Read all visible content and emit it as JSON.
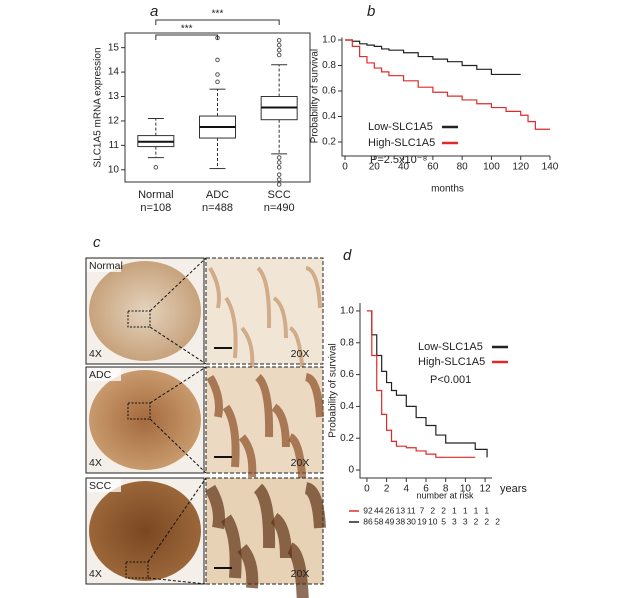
{
  "chart_data": [
    {
      "type": "box",
      "panel_label": "a",
      "ylabel": "SLC1A5 mRNA expression",
      "categories": [
        "Normal",
        "ADC",
        "SCC"
      ],
      "n_labels": [
        "n=108",
        "n=488",
        "n=490"
      ],
      "boxes": [
        {
          "low": 10.5,
          "q1": 10.95,
          "median": 11.15,
          "q3": 11.4,
          "high": 12.1,
          "outliers": [
            10.1
          ]
        },
        {
          "low": 10.05,
          "q1": 11.3,
          "median": 11.75,
          "q3": 12.2,
          "high": 13.3,
          "outliers": [
            13.6,
            13.9,
            14.5,
            15.4
          ]
        },
        {
          "low": 10.65,
          "q1": 12.05,
          "median": 12.55,
          "q3": 13.0,
          "high": 14.3,
          "outliers": [
            14.7,
            14.9,
            15.1,
            15.3,
            10.5,
            10.3,
            10.1,
            9.8,
            9.6,
            9.4
          ]
        }
      ],
      "ylim": [
        9.5,
        15.6
      ],
      "yticks": [
        10,
        11,
        12,
        13,
        14,
        15
      ],
      "significance": [
        {
          "between": [
            "Normal",
            "SCC"
          ],
          "label": "***"
        },
        {
          "between": [
            "Normal",
            "ADC"
          ],
          "label": "***"
        }
      ]
    },
    {
      "type": "survival",
      "panel_label": "b",
      "xlabel": "months",
      "ylabel": "Probability of survival",
      "annotation": "P=2.5x10⁻⁸",
      "xlim": [
        0,
        140
      ],
      "xticks": [
        0,
        20,
        40,
        60,
        80,
        100,
        120,
        140
      ],
      "ylim": [
        0.1,
        1.02
      ],
      "yticks": [
        0.2,
        0.4,
        0.6,
        0.8,
        {
          "value": 1,
          "label": "1.0"
        }
      ],
      "series": [
        {
          "name": "Low-SLC1A5",
          "color": "#222222",
          "x": [
            0,
            5,
            10,
            15,
            20,
            25,
            30,
            40,
            50,
            60,
            70,
            80,
            90,
            100,
            110,
            120
          ],
          "values": [
            1,
            0.99,
            0.97,
            0.96,
            0.95,
            0.93,
            0.92,
            0.9,
            0.87,
            0.85,
            0.83,
            0.8,
            0.77,
            0.73,
            0.73,
            0.73
          ]
        },
        {
          "name": "High-SLC1A5",
          "color": "#e02a2a",
          "x": [
            0,
            5,
            10,
            15,
            20,
            25,
            30,
            40,
            50,
            60,
            70,
            80,
            90,
            100,
            110,
            120,
            125,
            130,
            140
          ],
          "values": [
            1,
            0.95,
            0.87,
            0.82,
            0.78,
            0.75,
            0.72,
            0.68,
            0.63,
            0.59,
            0.56,
            0.53,
            0.5,
            0.47,
            0.44,
            0.41,
            0.36,
            0.3,
            0.3
          ]
        }
      ]
    },
    {
      "type": "survival",
      "panel_label": "d",
      "xlabel": "years",
      "ylabel": "Probability of survival",
      "annotation": "P<0.001",
      "xlim": [
        -0.7,
        12.7
      ],
      "xticks": [
        0,
        2,
        4,
        6,
        8,
        10,
        12
      ],
      "ylim": [
        -0.05,
        1.05
      ],
      "yticks": [
        0,
        0.2,
        0.4,
        0.6,
        0.8,
        {
          "value": 1,
          "label": "1.0"
        }
      ],
      "series": [
        {
          "name": "Low-SLC1A5",
          "color": "#222222",
          "x": [
            0,
            0.5,
            1,
            1.5,
            2,
            2.5,
            3,
            4,
            5,
            6,
            7,
            8,
            10,
            11,
            12,
            12.2
          ],
          "values": [
            1,
            0.85,
            0.72,
            0.62,
            0.55,
            0.5,
            0.47,
            0.4,
            0.33,
            0.28,
            0.22,
            0.17,
            0.17,
            0.13,
            0.13,
            0.08
          ]
        },
        {
          "name": "High-SLC1A5",
          "color": "#e02a2a",
          "x": [
            0,
            0.5,
            1,
            1.5,
            2,
            2.5,
            3,
            4,
            5,
            6,
            7,
            8,
            11
          ],
          "values": [
            1,
            0.72,
            0.5,
            0.35,
            0.25,
            0.18,
            0.15,
            0.14,
            0.12,
            0.1,
            0.08,
            0.08,
            0.08
          ]
        }
      ],
      "risk_table": {
        "title": "number at risk",
        "rows": [
          {
            "color": "#e02a2a",
            "values": [
              92,
              44,
              26,
              13,
              11,
              7,
              2,
              2,
              1,
              1,
              1,
              1
            ]
          },
          {
            "color": "#222222",
            "values": [
              86,
              58,
              49,
              38,
              30,
              19,
              10,
              5,
              3,
              3,
              2,
              2,
              2
            ]
          }
        ]
      }
    }
  ],
  "panel_c": {
    "panel_label": "c",
    "rows": [
      {
        "label": "Normal",
        "low_mag": "4X",
        "high_mag": "20X"
      },
      {
        "label": "ADC",
        "low_mag": "4X",
        "high_mag": "20X"
      },
      {
        "label": "SCC",
        "low_mag": "4X",
        "high_mag": "20X"
      }
    ]
  }
}
